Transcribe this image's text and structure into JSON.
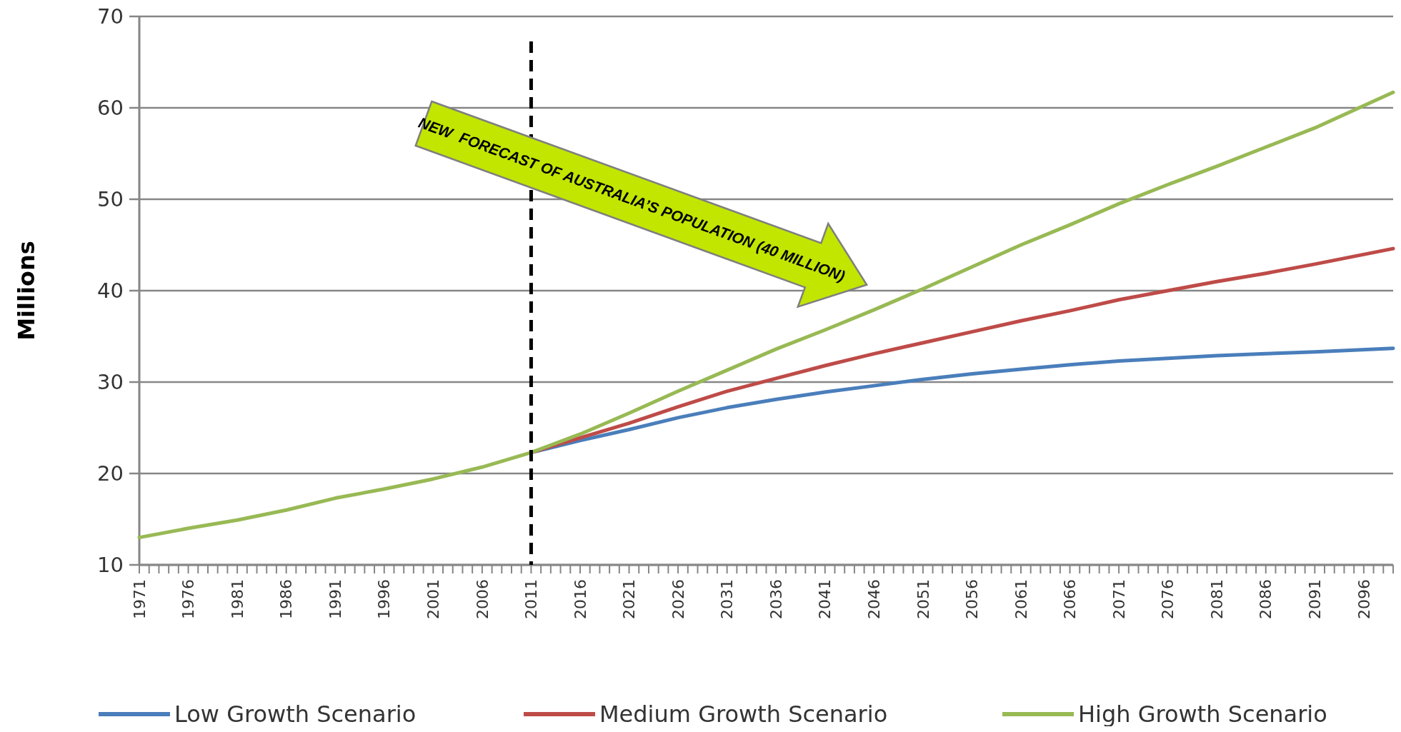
{
  "chart_data": {
    "type": "line",
    "ylabel": "Millions",
    "ylim": [
      10,
      70
    ],
    "yticks": [
      10,
      20,
      30,
      40,
      50,
      60,
      70
    ],
    "xlim": [
      1971,
      2099
    ],
    "xticks": [
      1971,
      {
        "value": 1972,
        "label": null
      },
      {
        "value": 1973,
        "label": null
      },
      {
        "value": 1974,
        "label": null
      },
      {
        "value": 1975,
        "label": null
      },
      1976,
      {
        "value": 1977,
        "label": null
      },
      {
        "value": 1978,
        "label": null
      },
      {
        "value": 1979,
        "label": null
      },
      {
        "value": 1980,
        "label": null
      },
      1981,
      {
        "value": 1982,
        "label": null
      },
      {
        "value": 1983,
        "label": null
      },
      {
        "value": 1984,
        "label": null
      },
      {
        "value": 1985,
        "label": null
      },
      1986,
      {
        "value": 1987,
        "label": null
      },
      {
        "value": 1988,
        "label": null
      },
      {
        "value": 1989,
        "label": null
      },
      {
        "value": 1990,
        "label": null
      },
      1991,
      {
        "value": 1992,
        "label": null
      },
      {
        "value": 1993,
        "label": null
      },
      {
        "value": 1994,
        "label": null
      },
      {
        "value": 1995,
        "label": null
      },
      1996,
      {
        "value": 1997,
        "label": null
      },
      {
        "value": 1998,
        "label": null
      },
      {
        "value": 1999,
        "label": null
      },
      {
        "value": 2000,
        "label": null
      },
      2001,
      {
        "value": 2002,
        "label": null
      },
      {
        "value": 2003,
        "label": null
      },
      {
        "value": 2004,
        "label": null
      },
      {
        "value": 2005,
        "label": null
      },
      2006,
      {
        "value": 2007,
        "label": null
      },
      {
        "value": 2008,
        "label": null
      },
      {
        "value": 2009,
        "label": null
      },
      {
        "value": 2010,
        "label": null
      },
      2011,
      {
        "value": 2012,
        "label": null
      },
      {
        "value": 2013,
        "label": null
      },
      {
        "value": 2014,
        "label": null
      },
      {
        "value": 2015,
        "label": null
      },
      2016,
      {
        "value": 2017,
        "label": null
      },
      {
        "value": 2018,
        "label": null
      },
      {
        "value": 2019,
        "label": null
      },
      {
        "value": 2020,
        "label": null
      },
      2021,
      {
        "value": 2022,
        "label": null
      },
      {
        "value": 2023,
        "label": null
      },
      {
        "value": 2024,
        "label": null
      },
      {
        "value": 2025,
        "label": null
      },
      2026,
      {
        "value": 2027,
        "label": null
      },
      {
        "value": 2028,
        "label": null
      },
      {
        "value": 2029,
        "label": null
      },
      {
        "value": 2030,
        "label": null
      },
      2031,
      {
        "value": 2032,
        "label": null
      },
      {
        "value": 2033,
        "label": null
      },
      {
        "value": 2034,
        "label": null
      },
      {
        "value": 2035,
        "label": null
      },
      2036,
      {
        "value": 2037,
        "label": null
      },
      {
        "value": 2038,
        "label": null
      },
      {
        "value": 2039,
        "label": null
      },
      {
        "value": 2040,
        "label": null
      },
      2041,
      {
        "value": 2042,
        "label": null
      },
      {
        "value": 2043,
        "label": null
      },
      {
        "value": 2044,
        "label": null
      },
      {
        "value": 2045,
        "label": null
      },
      2046,
      {
        "value": 2047,
        "label": null
      },
      {
        "value": 2048,
        "label": null
      },
      {
        "value": 2049,
        "label": null
      },
      {
        "value": 2050,
        "label": null
      },
      2051,
      {
        "value": 2052,
        "label": null
      },
      {
        "value": 2053,
        "label": null
      },
      {
        "value": 2054,
        "label": null
      },
      {
        "value": 2055,
        "label": null
      },
      2056,
      {
        "value": 2057,
        "label": null
      },
      {
        "value": 2058,
        "label": null
      },
      {
        "value": 2059,
        "label": null
      },
      {
        "value": 2060,
        "label": null
      },
      2061,
      {
        "value": 2062,
        "label": null
      },
      {
        "value": 2063,
        "label": null
      },
      {
        "value": 2064,
        "label": null
      },
      {
        "value": 2065,
        "label": null
      },
      2066,
      {
        "value": 2067,
        "label": null
      },
      {
        "value": 2068,
        "label": null
      },
      {
        "value": 2069,
        "label": null
      },
      {
        "value": 2070,
        "label": null
      },
      2071,
      {
        "value": 2072,
        "label": null
      },
      {
        "value": 2073,
        "label": null
      },
      {
        "value": 2074,
        "label": null
      },
      {
        "value": 2075,
        "label": null
      },
      2076,
      {
        "value": 2077,
        "label": null
      },
      {
        "value": 2078,
        "label": null
      },
      {
        "value": 2079,
        "label": null
      },
      {
        "value": 2080,
        "label": null
      },
      2081,
      {
        "value": 2082,
        "label": null
      },
      {
        "value": 2083,
        "label": null
      },
      {
        "value": 2084,
        "label": null
      },
      {
        "value": 2085,
        "label": null
      },
      2086,
      {
        "value": 2087,
        "label": null
      },
      {
        "value": 2088,
        "label": null
      },
      {
        "value": 2089,
        "label": null
      },
      {
        "value": 2090,
        "label": null
      },
      2091,
      {
        "value": 2092,
        "label": null
      },
      {
        "value": 2093,
        "label": null
      },
      {
        "value": 2094,
        "label": null
      },
      {
        "value": 2095,
        "label": null
      },
      2096,
      {
        "value": 2097,
        "label": null
      },
      {
        "value": 2098,
        "label": null
      },
      {
        "value": 2099,
        "label": null
      }
    ],
    "grid": "y",
    "legend": "bottom",
    "line_style": "solid",
    "series": [
      {
        "name": "Low Growth Scenario",
        "color": "#4a7ebb",
        "x": [
          2011,
          2016,
          2021,
          2026,
          2031,
          2036,
          2041,
          2046,
          2051,
          2056,
          2061,
          2066,
          2071,
          2076,
          2081,
          2086,
          2091,
          2099
        ],
        "values": [
          22.3,
          23.6,
          24.8,
          26.1,
          27.2,
          28.1,
          28.9,
          29.6,
          30.3,
          30.9,
          31.4,
          31.9,
          32.3,
          32.6,
          32.9,
          33.1,
          33.3,
          33.7
        ]
      },
      {
        "name": "Medium Growth Scenario",
        "color": "#be4b48",
        "x": [
          2011,
          2016,
          2021,
          2026,
          2031,
          2036,
          2041,
          2046,
          2051,
          2056,
          2061,
          2066,
          2071,
          2076,
          2081,
          2086,
          2091,
          2099
        ],
        "values": [
          22.3,
          23.9,
          25.5,
          27.3,
          29,
          30.4,
          31.8,
          33.1,
          34.3,
          35.5,
          36.7,
          37.8,
          39,
          40,
          41,
          41.9,
          42.9,
          44.6
        ]
      },
      {
        "name": "High Growth Scenario",
        "color": "#98b954",
        "x": [
          1971,
          1976,
          1981,
          1986,
          1991,
          1996,
          2001,
          2006,
          2011,
          2016,
          2021,
          2026,
          2031,
          2036,
          2041,
          2046,
          2051,
          2056,
          2061,
          2066,
          2071,
          2076,
          2081,
          2086,
          2091,
          2099
        ],
        "values": [
          13,
          14,
          14.9,
          16,
          17.3,
          18.3,
          19.4,
          20.7,
          22.3,
          24.3,
          26.6,
          29,
          31.3,
          33.6,
          35.7,
          37.9,
          40.2,
          42.6,
          45,
          47.2,
          49.5,
          51.6,
          53.6,
          55.7,
          57.8,
          61.7
        ]
      }
    ],
    "ref_lines": [
      {
        "axis": "x",
        "value": 2011,
        "color": "#000000",
        "line_style": "dashed"
      }
    ],
    "annotations": [
      "NEW  FORECAST OF AUSTRALIA’S POPULATION (40 MILLION)"
    ]
  }
}
